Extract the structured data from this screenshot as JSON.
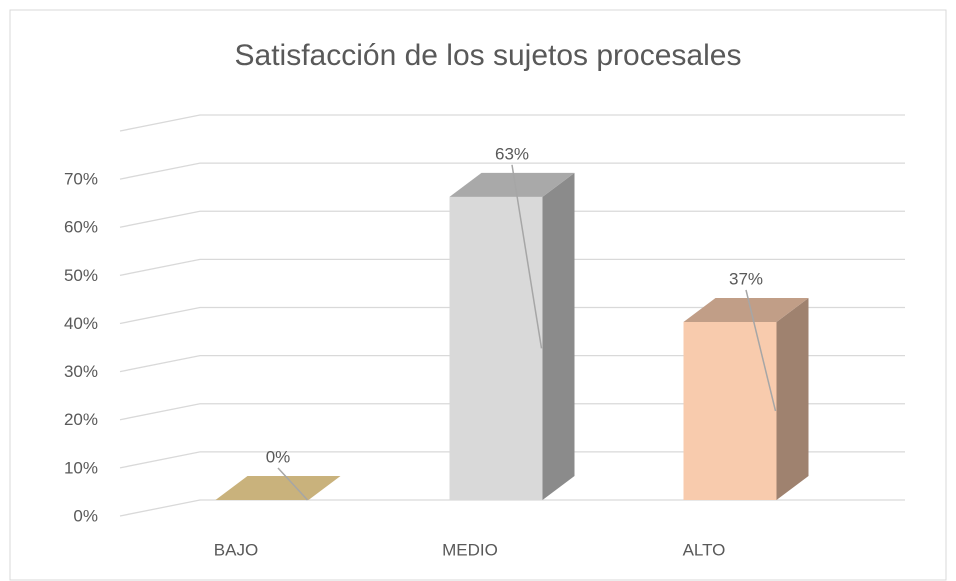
{
  "chart_data": {
    "type": "bar3d",
    "title": "Satisfacción de los sujetos procesales",
    "categories": [
      "BAJO",
      "MEDIO",
      "ALTO"
    ],
    "values": [
      0,
      63,
      37
    ],
    "value_labels": [
      "0%",
      "63%",
      "37%"
    ],
    "colors": [
      "#c9b27c",
      "#d9d9d9",
      "#f8cbad"
    ],
    "ylim": [
      0,
      80
    ],
    "yticks": [
      {
        "value": 0,
        "label": "0%"
      },
      {
        "value": 10,
        "label": "10%"
      },
      {
        "value": 20,
        "label": "20%"
      },
      {
        "value": 30,
        "label": "30%"
      },
      {
        "value": 40,
        "label": "40%"
      },
      {
        "value": 50,
        "label": "50%"
      },
      {
        "value": 60,
        "label": "60%"
      },
      {
        "value": 70,
        "label": "70%"
      }
    ],
    "grid": true
  }
}
